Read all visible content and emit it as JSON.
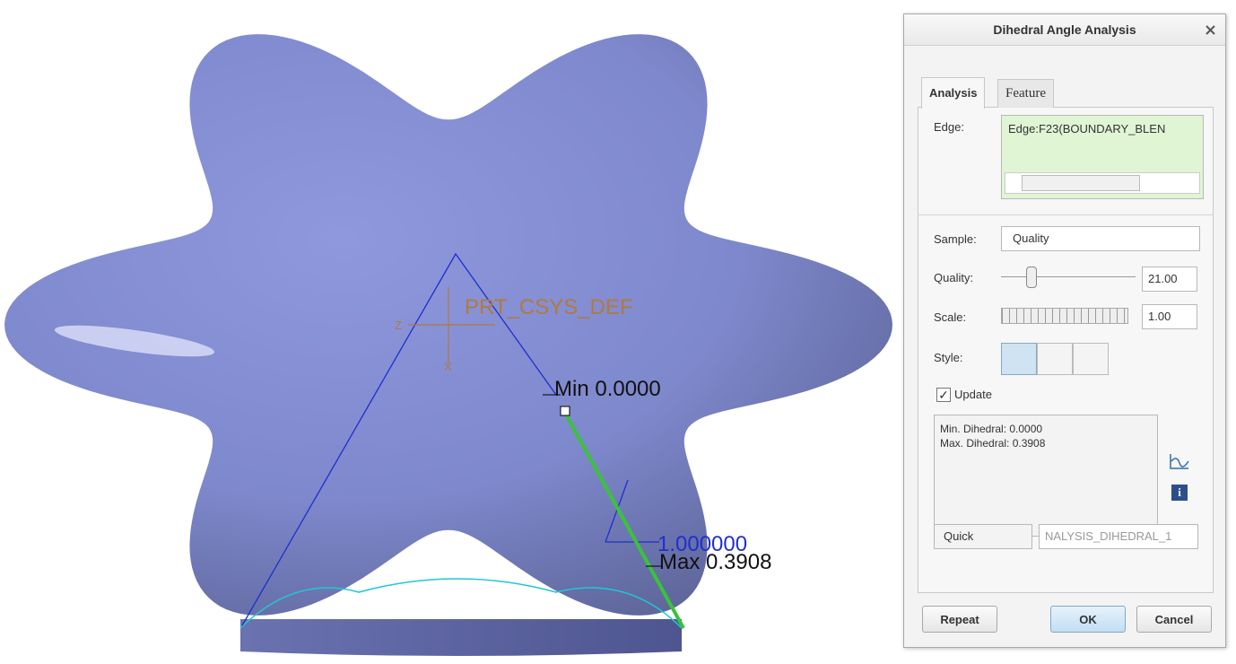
{
  "viewport": {
    "csys_label": "PRT_CSYS_DEF",
    "axis_z": "Z",
    "axis_x": "X",
    "min_label": "Min 0.0000",
    "scale_label": "1.000000",
    "max_label": "Max 0.3908"
  },
  "dialog": {
    "title": "Dihedral Angle Analysis",
    "tabs": [
      "Analysis",
      "Feature"
    ],
    "edge_label": "Edge:",
    "edge_value": "Edge:F23(BOUNDARY_BLEN",
    "sample_label": "Sample:",
    "sample_value": "Quality",
    "quality_label": "Quality:",
    "quality_value": "21.00",
    "scale_label": "Scale:",
    "scale_value": "1.00",
    "style_label": "Style:",
    "update_label": "Update",
    "results": [
      "Min. Dihedral: 0.0000",
      "Max. Dihedral: 0.3908"
    ],
    "mode": "Quick",
    "feature_name": "NALYSIS_DIHEDRAL_1",
    "buttons": [
      "Repeat",
      "OK",
      "Cancel"
    ]
  }
}
